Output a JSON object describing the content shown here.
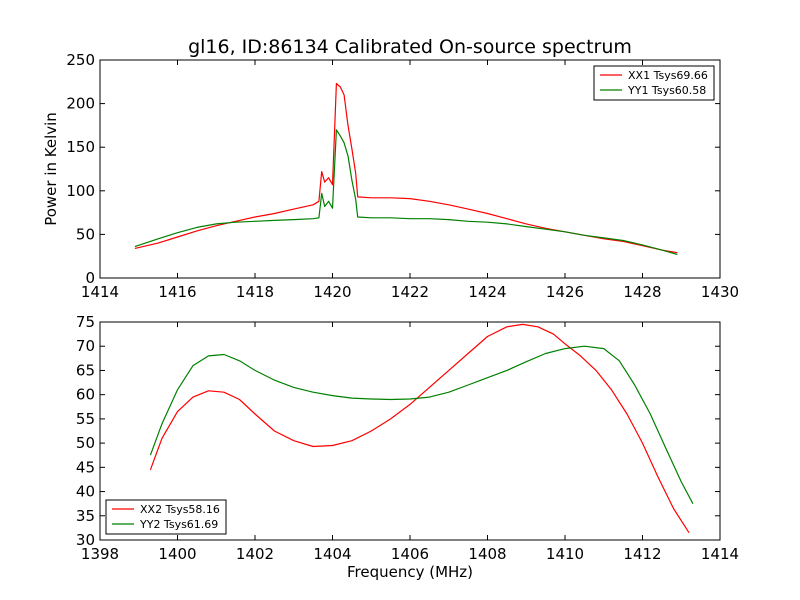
{
  "figure": {
    "title": "gl16, ID:86134 Calibrated On-source spectrum"
  },
  "chart_data": [
    {
      "type": "line",
      "title": "gl16, ID:86134 Calibrated On-source spectrum",
      "xlabel": "",
      "ylabel": "Power in Kelvin",
      "xlim": [
        1414,
        1430
      ],
      "ylim": [
        0,
        250
      ],
      "xticks": [
        "1414",
        "1416",
        "1418",
        "1420",
        "1422",
        "1424",
        "1426",
        "1428",
        "1430"
      ],
      "yticks": [
        "0",
        "50",
        "100",
        "150",
        "200",
        "250"
      ],
      "grid": false,
      "legend_position": "top-right",
      "series": [
        {
          "name": "XX1 Tsys69.66",
          "color": "#ff0000",
          "x": [
            1414.9,
            1415.5,
            1416.0,
            1416.5,
            1417.0,
            1417.5,
            1418.0,
            1418.5,
            1419.0,
            1419.5,
            1419.65,
            1419.72,
            1419.8,
            1419.9,
            1420.0,
            1420.1,
            1420.2,
            1420.3,
            1420.4,
            1420.5,
            1420.6,
            1420.65,
            1421.0,
            1421.5,
            1422.0,
            1422.5,
            1423.0,
            1423.5,
            1424.0,
            1424.5,
            1425.0,
            1425.5,
            1426.0,
            1426.5,
            1427.0,
            1427.5,
            1428.0,
            1428.5,
            1428.9
          ],
          "y": [
            34,
            40,
            47,
            54,
            60,
            65,
            70,
            74,
            79,
            84,
            88,
            122,
            110,
            115,
            107,
            223,
            219,
            210,
            175,
            148,
            120,
            93,
            92,
            92,
            91,
            88,
            84,
            79,
            74,
            68,
            62,
            57,
            53,
            49,
            45,
            42,
            37,
            32,
            29
          ]
        },
        {
          "name": "YY1 Tsys60.58",
          "color": "#008000",
          "x": [
            1414.9,
            1415.5,
            1416.0,
            1416.5,
            1417.0,
            1417.5,
            1418.0,
            1418.5,
            1419.0,
            1419.5,
            1419.65,
            1419.72,
            1419.8,
            1419.9,
            1420.0,
            1420.1,
            1420.2,
            1420.3,
            1420.4,
            1420.5,
            1420.6,
            1420.65,
            1421.0,
            1421.5,
            1422.0,
            1422.5,
            1423.0,
            1423.5,
            1424.0,
            1424.5,
            1425.0,
            1425.5,
            1426.0,
            1426.5,
            1427.0,
            1427.5,
            1428.0,
            1428.5,
            1428.9
          ],
          "y": [
            36,
            45,
            52,
            58,
            62,
            64,
            65,
            66,
            67,
            68,
            69,
            97,
            82,
            88,
            80,
            170,
            163,
            155,
            140,
            112,
            90,
            70,
            69,
            69,
            68,
            68,
            67,
            65,
            64,
            62,
            59,
            56,
            53,
            49,
            46,
            43,
            38,
            32,
            27
          ]
        }
      ]
    },
    {
      "type": "line",
      "xlabel": "Frequency (MHz)",
      "ylabel": "",
      "xlim": [
        1398,
        1414
      ],
      "ylim": [
        30,
        75
      ],
      "xticks": [
        "1398",
        "1400",
        "1402",
        "1404",
        "1406",
        "1408",
        "1410",
        "1412",
        "1414"
      ],
      "yticks": [
        "30",
        "35",
        "40",
        "45",
        "50",
        "55",
        "60",
        "65",
        "70",
        "75"
      ],
      "grid": false,
      "legend_position": "bottom-left",
      "series": [
        {
          "name": "XX2 Tsys58.16",
          "color": "#ff0000",
          "x": [
            1399.3,
            1399.6,
            1400.0,
            1400.4,
            1400.8,
            1401.2,
            1401.6,
            1402.0,
            1402.5,
            1403.0,
            1403.5,
            1404.0,
            1404.5,
            1405.0,
            1405.5,
            1406.0,
            1406.5,
            1407.0,
            1407.5,
            1408.0,
            1408.5,
            1408.9,
            1409.3,
            1409.7,
            1410.0,
            1410.4,
            1410.8,
            1411.2,
            1411.6,
            1412.0,
            1412.4,
            1412.8,
            1413.2
          ],
          "y": [
            44.5,
            51,
            56.5,
            59.5,
            60.8,
            60.5,
            59,
            56,
            52.5,
            50.5,
            49.3,
            49.5,
            50.5,
            52.5,
            55,
            58,
            61.5,
            65,
            68.5,
            72,
            74,
            74.5,
            74,
            72.5,
            70.5,
            68,
            65,
            61,
            56,
            50,
            43,
            36.5,
            31.5
          ]
        },
        {
          "name": "YY2 Tsys61.69",
          "color": "#008000",
          "x": [
            1399.3,
            1399.6,
            1400.0,
            1400.4,
            1400.8,
            1401.2,
            1401.6,
            1402.0,
            1402.5,
            1403.0,
            1403.5,
            1404.0,
            1404.5,
            1405.0,
            1405.5,
            1406.0,
            1406.5,
            1407.0,
            1407.5,
            1408.0,
            1408.5,
            1409.0,
            1409.5,
            1410.0,
            1410.5,
            1411.0,
            1411.4,
            1411.8,
            1412.2,
            1412.6,
            1413.0,
            1413.3
          ],
          "y": [
            47.5,
            54,
            61,
            66,
            68,
            68.3,
            67,
            65,
            63,
            61.5,
            60.5,
            59.8,
            59.3,
            59.1,
            59.0,
            59.1,
            59.5,
            60.5,
            62,
            63.5,
            65,
            66.8,
            68.5,
            69.5,
            70,
            69.5,
            67,
            62,
            56,
            49,
            42,
            37.5
          ]
        }
      ]
    }
  ]
}
